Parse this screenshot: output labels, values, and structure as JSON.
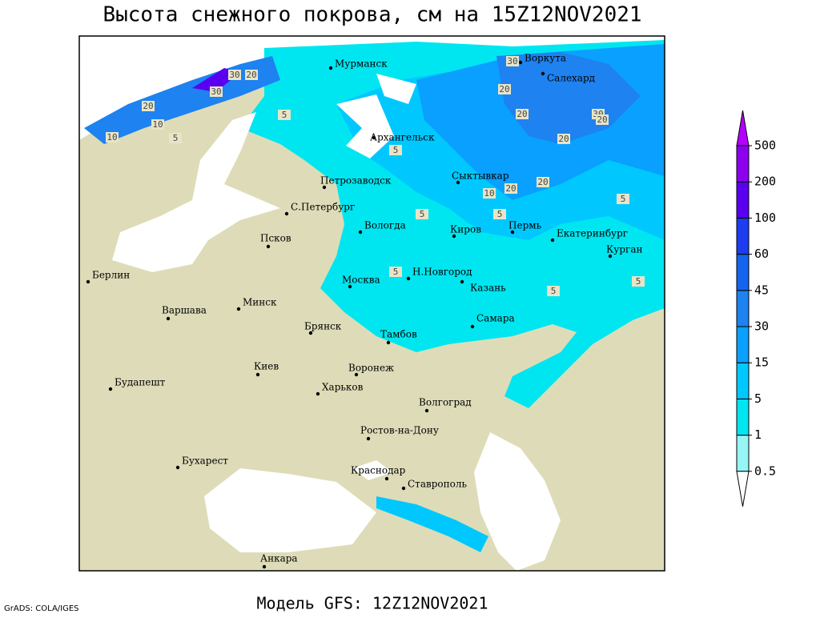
{
  "header": {
    "title": "Высота снежного покрова, см на 15Z12NOV2021"
  },
  "footer": {
    "model": "Модель GFS: 12Z12NOV2021",
    "credit": "GrADS: COLA/IGES"
  },
  "legend": {
    "levels": [
      0.5,
      1,
      5,
      15,
      30,
      45,
      60,
      100,
      200,
      500
    ],
    "colors": [
      "#ffffff",
      "#96f5f5",
      "#00e6f0",
      "#00c8ff",
      "#0aa0ff",
      "#1e82f0",
      "#1464f0",
      "#1e3cf0",
      "#5a00f0",
      "#8c00f0",
      "#b400ff"
    ]
  },
  "map": {
    "cities": [
      "Мурманск",
      "Воркута",
      "Салехард",
      "Архангельск",
      "Сыктывкар",
      "Петрозаводск",
      "С.Петербург",
      "Вологда",
      "Киров",
      "Пермь",
      "Екатеринбург",
      "Курган",
      "Псков",
      "Н.Новгород",
      "Москва",
      "Казань",
      "Берлин",
      "Минск",
      "Варшава",
      "Брянск",
      "Самара",
      "Тамбов",
      "Киев",
      "Воронеж",
      "Будапешт",
      "Харьков",
      "Волгоград",
      "Ростов-на-Дону",
      "Бухарест",
      "Краснодар",
      "Ставрополь",
      "Анкара"
    ],
    "contour_labels": [
      30,
      20,
      30,
      20,
      10,
      5,
      5,
      20,
      30,
      5,
      5,
      20,
      20,
      30,
      20,
      20,
      10,
      20,
      10,
      5,
      5,
      5,
      5,
      5
    ]
  }
}
